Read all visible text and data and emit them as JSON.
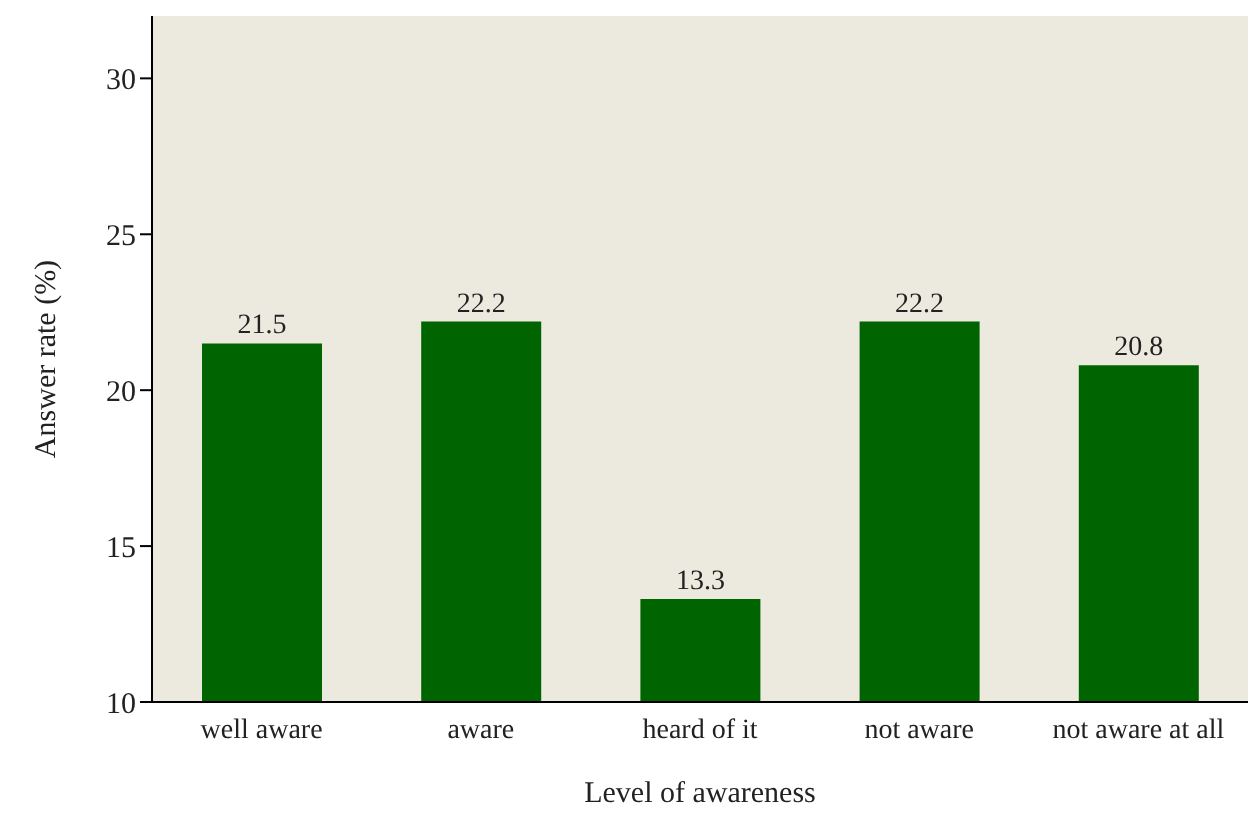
{
  "chart_data": {
    "type": "bar",
    "xlabel": "Level of awareness",
    "ylabel": "Answer rate (%)",
    "categories": [
      "well aware",
      "aware",
      "heard of it",
      "not aware",
      "not aware at all"
    ],
    "values": [
      21.5,
      22.2,
      13.3,
      22.2,
      20.8
    ],
    "color": "#006400",
    "ylim": [
      10,
      32
    ],
    "yticks": [
      10,
      15,
      20,
      25,
      30
    ],
    "data_labels": true
  }
}
